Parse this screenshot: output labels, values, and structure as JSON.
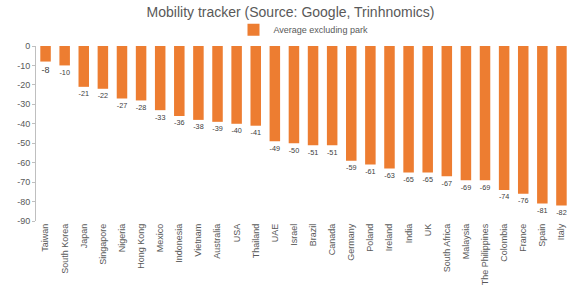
{
  "chart_data": {
    "type": "bar",
    "title": "Mobility tracker (Source: Google, Trinhnomics)",
    "categories": [
      "Taiwan",
      "South Korea",
      "Japan",
      "Singapore",
      "Nigeria",
      "Hong Kong",
      "Mexico",
      "Indonesia",
      "Vietnam",
      "Australia",
      "USA",
      "Thailand",
      "UAE",
      "Israel",
      "Brazil",
      "Canada",
      "Germany",
      "Poland",
      "Ireland",
      "India",
      "UK",
      "South Africa",
      "Malaysia",
      "The Philippines",
      "Colombia",
      "France",
      "Spain",
      "Italy"
    ],
    "series": [
      {
        "name": "Average excluding park",
        "color": "#ed7d31",
        "values": [
          -8,
          -10,
          -21,
          -22,
          -27,
          -28,
          -33,
          -36,
          -38,
          -39,
          -40,
          -41,
          -49,
          -50,
          -51,
          -51,
          -59,
          -61,
          -63,
          -65,
          -65,
          -67,
          -69,
          -69,
          -74,
          -76,
          -81,
          -82
        ]
      }
    ],
    "ylim": [
      -90,
      0
    ],
    "yticks": [
      -90,
      -80,
      -70,
      -60,
      -50,
      -40,
      -30,
      -20,
      -10,
      0
    ],
    "grid": false,
    "legend": "top",
    "data_labels": true
  }
}
